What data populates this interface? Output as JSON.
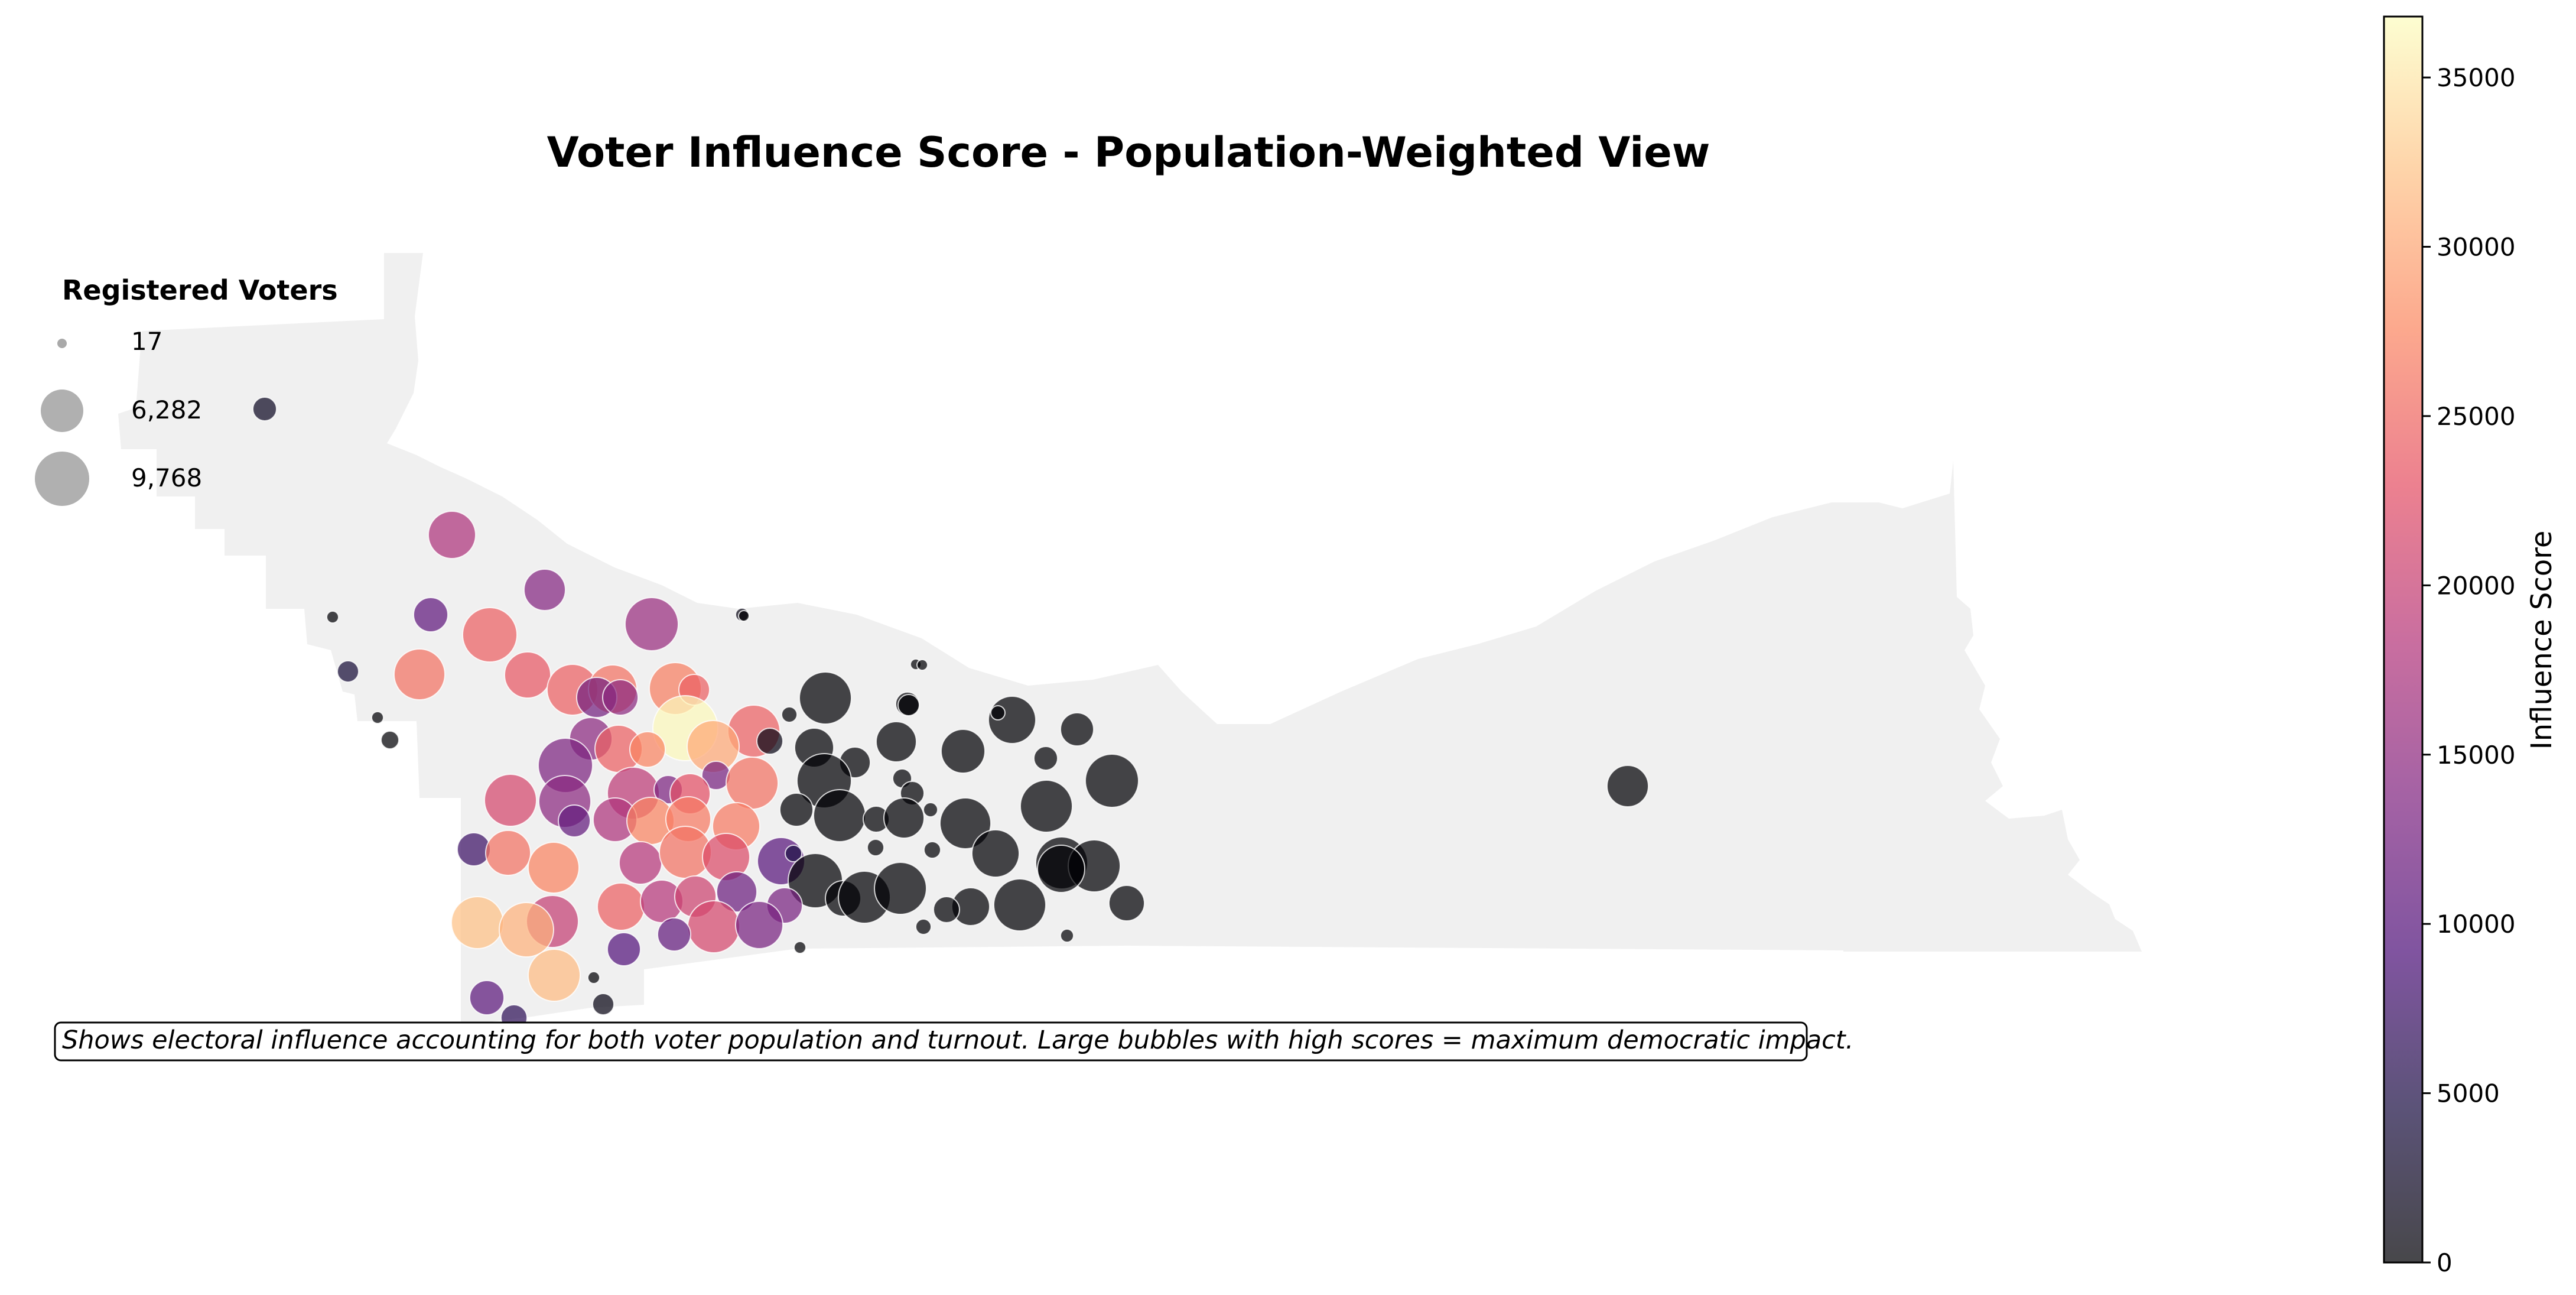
{
  "title": "Voter Influence Score - Population-Weighted View",
  "caption": "Shows electoral influence accounting for both voter population and turnout. Large bubbles with high scores = maximum democratic impact.",
  "size_legend": {
    "title": "Registered Voters",
    "entries": [
      {
        "label": "17",
        "voters": 17
      },
      {
        "label": "6,282",
        "voters": 6282
      },
      {
        "label": "9,768",
        "voters": 9768
      }
    ]
  },
  "colorbar": {
    "label": "Influence Score",
    "colormap": "magma",
    "range": [
      0,
      36800
    ],
    "ticks": [
      {
        "value": 0,
        "label": "0"
      },
      {
        "value": 5000,
        "label": "5000"
      },
      {
        "value": 10000,
        "label": "10000"
      },
      {
        "value": 15000,
        "label": "15000"
      },
      {
        "value": 20000,
        "label": "20000"
      },
      {
        "value": 25000,
        "label": "25000"
      },
      {
        "value": 30000,
        "label": "30000"
      },
      {
        "value": 35000,
        "label": "35000"
      }
    ]
  },
  "map": {
    "region_fill": "#f0f0f0",
    "bubble_opacity": 0.72,
    "bubble_stroke": "#ffffff"
  }
}
